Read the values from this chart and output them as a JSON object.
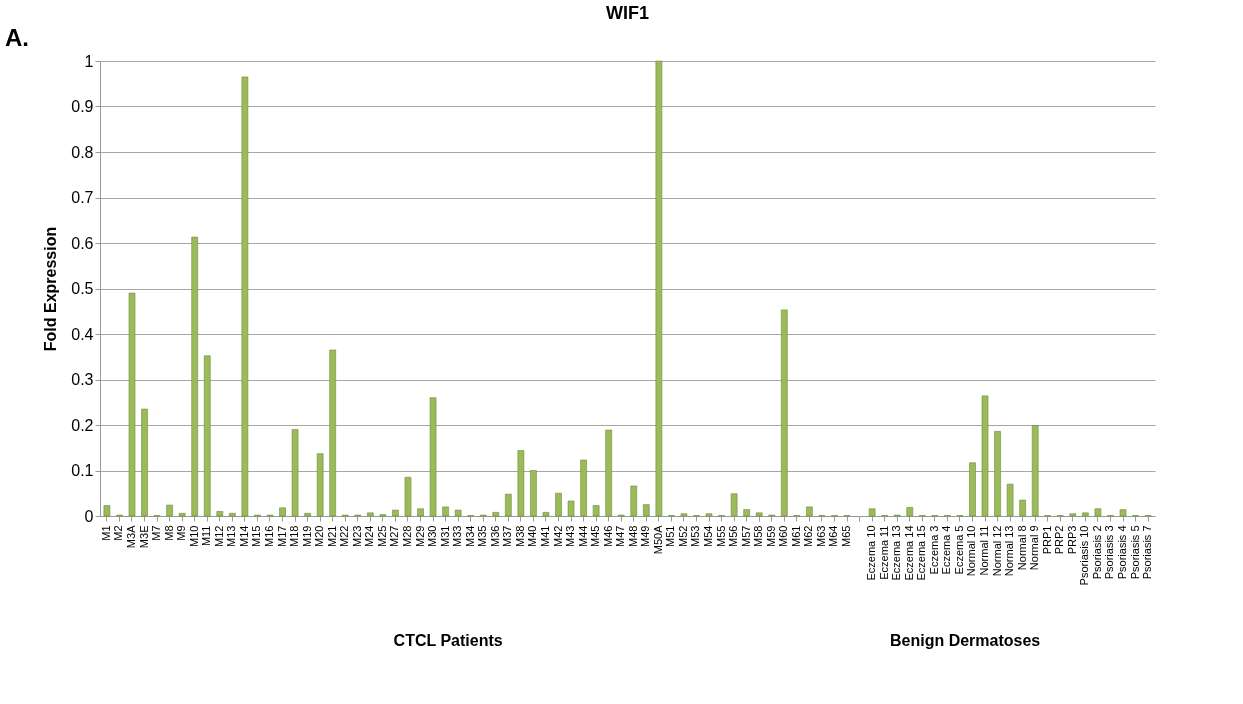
{
  "chart_data": {
    "type": "bar",
    "title": "WIF1",
    "ylabel": "Fold Expression",
    "annotations": [
      "A.",
      "CTCL Patients",
      "Benign Dermatoses"
    ],
    "categories": [
      "M1",
      "M2",
      "M3A",
      "M3E",
      "M7",
      "M8",
      "M9",
      "M10",
      "M11",
      "M12",
      "M13",
      "M14",
      "M15",
      "M16",
      "M17",
      "M18",
      "M19",
      "M20",
      "M21",
      "M22",
      "M23",
      "M24",
      "M25",
      "M27",
      "M28",
      "M29",
      "M30",
      "M31",
      "M33",
      "M34",
      "M35",
      "M36",
      "M37",
      "M38",
      "M40",
      "M41",
      "M42",
      "M43",
      "M44",
      "M45",
      "M46",
      "M47",
      "M48",
      "M49",
      "M50A",
      "M51",
      "M52",
      "M53",
      "M54",
      "M55",
      "M56",
      "M57",
      "M58",
      "M59",
      "M60",
      "M61",
      "M62",
      "M63",
      "M64",
      "M65",
      null,
      "Eczema 10",
      "Eczema 11",
      "Eczema 13",
      "Eczema 14",
      "Eczema 15",
      "Eczema 3",
      "Eczema 4",
      "Eczema 5",
      "Normal 10",
      "Normal 11",
      "Normal 12",
      "Normal 13",
      "Normal 8",
      "Normal 9",
      "PRP1",
      "PRP2",
      "PRP3",
      "Psoriasis 10",
      "Psoriasis 2",
      "Psoriasis 3",
      "Psoriasis 4",
      "Psoriasis 5",
      "Psoriasis 7"
    ],
    "values": [
      0.023,
      0.002,
      0.49,
      0.235,
      0.001,
      0.024,
      0.006,
      0.613,
      0.352,
      0.01,
      0.006,
      0.965,
      0.002,
      0.002,
      0.018,
      0.19,
      0.006,
      0.137,
      0.365,
      0.002,
      0.002,
      0.007,
      0.003,
      0.013,
      0.085,
      0.016,
      0.26,
      0.02,
      0.013,
      0.001,
      0.002,
      0.008,
      0.048,
      0.144,
      0.1,
      0.008,
      0.05,
      0.033,
      0.123,
      0.023,
      0.189,
      0.002,
      0.066,
      0.025,
      1.0,
      0.001,
      0.005,
      0.001,
      0.005,
      0.001,
      0.049,
      0.014,
      0.007,
      0.002,
      0.453,
      0.001,
      0.02,
      0.001,
      0.001,
      0.001,
      null,
      0.016,
      0.001,
      0.002,
      0.019,
      0.001,
      0.001,
      0.001,
      0.001,
      0.117,
      0.264,
      0.186,
      0.07,
      0.035,
      0.199,
      0.001,
      0.001,
      0.005,
      0.007,
      0.016,
      0.001,
      0.014,
      0.001,
      0.001
    ],
    "color": "#9bbb59",
    "ylim": [
      0,
      1
    ],
    "yticks": [
      0,
      0.1,
      0.2,
      0.3,
      0.4,
      0.5,
      0.6,
      0.7,
      0.8,
      0.9,
      1
    ],
    "grid": "y"
  }
}
